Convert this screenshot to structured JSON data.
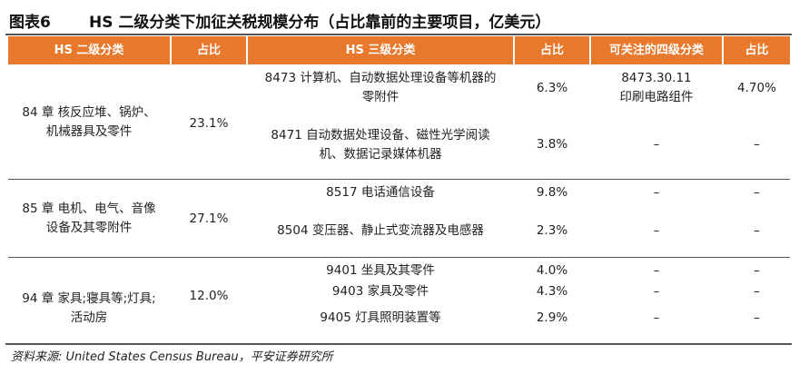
{
  "header": {
    "figure_label": "图表6",
    "title": "HS 二级分类下加征关税规模分布（占比靠前的主要项目，亿美元）"
  },
  "table": {
    "columns": [
      "HS 二级分类",
      "占比",
      "HS 三级分类",
      "占比",
      "可关注的四级分类",
      "占比"
    ],
    "groups": [
      {
        "l2_line1": "84 章 核反应堆、锅炉、",
        "l2_line2": "机械器具及零件",
        "l2_share": "23.1%",
        "rows": [
          {
            "l3_line1": "8473 计算机、自动数据处理设备等机器的",
            "l3_line2": "零附件",
            "l3_share": "6.3%",
            "l4_line1": "8473.30.11",
            "l4_line2": "印刷电路组件",
            "l4_share": "4.70%"
          },
          {
            "l3_line1": "8471 自动数据处理设备、磁性光学阅读",
            "l3_line2": "机、数据记录媒体机器",
            "l3_share": "3.8%",
            "l4_line1": "–",
            "l4_share": "–"
          }
        ]
      },
      {
        "l2_line1": "85 章 电机、电气、音像",
        "l2_line2": "设备及其零附件",
        "l2_share": "27.1%",
        "rows": [
          {
            "l3_line1": "8517 电话通信设备",
            "l3_share": "9.8%",
            "l4_line1": "–",
            "l4_share": "–"
          },
          {
            "l3_line1": "8504 变压器、静止式变流器及电感器",
            "l3_share": "2.3%",
            "l4_line1": "–",
            "l4_share": "–"
          }
        ]
      },
      {
        "l2_line1": "94 章 家具;寝具等;灯具;",
        "l2_line2": "活动房",
        "l2_share": "12.0%",
        "rows": [
          {
            "l3_line1": "9401 坐具及其零件",
            "l3_share": "4.0%",
            "l4_line1": "–",
            "l4_share": "–"
          },
          {
            "l3_line1": "9403 家具及零件",
            "l3_share": "4.3%",
            "l4_line1": "–",
            "l4_share": "–"
          },
          {
            "l3_line1": "9405 灯具照明装置等",
            "l3_share": "2.9%",
            "l4_line1": "–",
            "l4_share": "–"
          }
        ]
      }
    ]
  },
  "footer": {
    "source": "资料来源: United States Census Bureau，平安证券研究所"
  },
  "colors": {
    "header_bg": "#e8782b",
    "header_text": "#ffffff",
    "rule": "#555555"
  }
}
